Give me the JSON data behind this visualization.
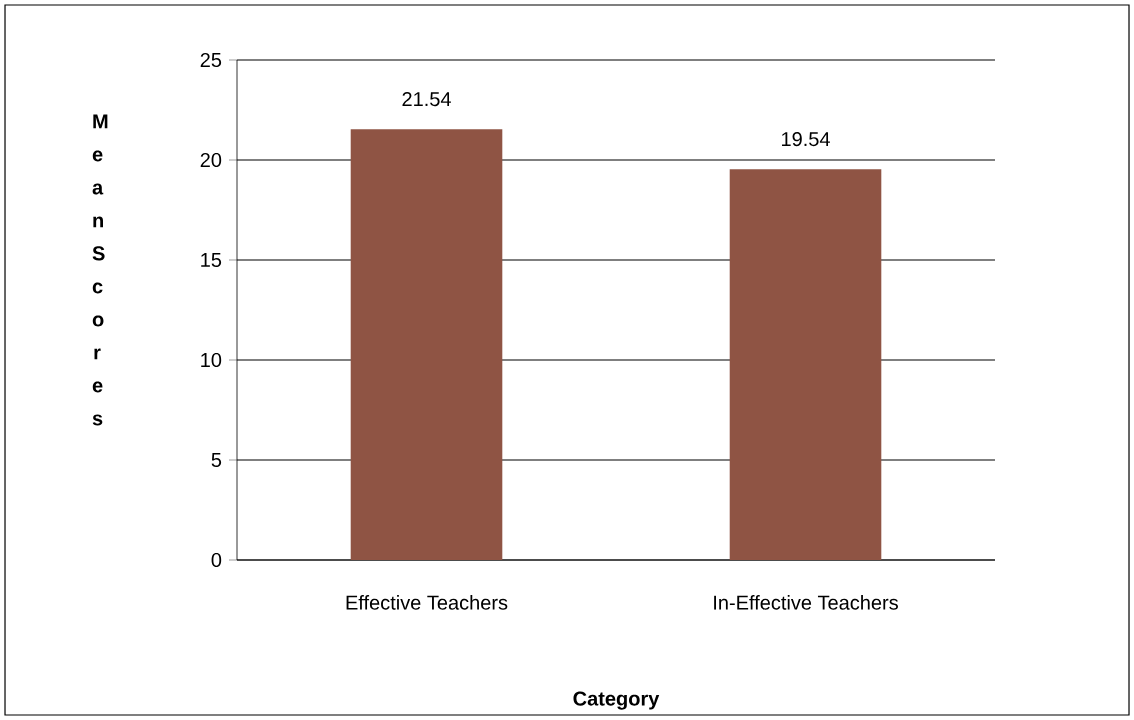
{
  "chart_data": {
    "type": "bar",
    "xlabel": "Category",
    "ylabel": "Mean Scores",
    "categories": [
      "Effective Teachers",
      "In-Effective Teachers"
    ],
    "values": [
      21.54,
      19.54
    ],
    "color": "#8f5444",
    "ylim": [
      0,
      25
    ],
    "yticks": [
      0,
      5,
      10,
      15,
      20,
      25
    ],
    "grid": "y",
    "data_labels": true
  }
}
